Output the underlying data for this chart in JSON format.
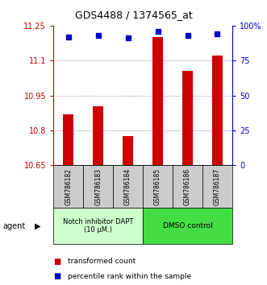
{
  "title": "GDS4488 / 1374565_at",
  "categories": [
    "GSM786182",
    "GSM786183",
    "GSM786184",
    "GSM786185",
    "GSM786186",
    "GSM786187"
  ],
  "bar_values": [
    10.87,
    10.905,
    10.775,
    11.2,
    11.055,
    11.12
  ],
  "blue_values": [
    92,
    93,
    91,
    96,
    93,
    94
  ],
  "ylim_left": [
    10.65,
    11.25
  ],
  "ylim_right": [
    0,
    100
  ],
  "yticks_left": [
    10.65,
    10.8,
    10.95,
    11.1,
    11.25
  ],
  "ytick_labels_left": [
    "10.65",
    "10.8",
    "10.95",
    "11.1",
    "11.25"
  ],
  "yticks_right": [
    0,
    25,
    50,
    75,
    100
  ],
  "ytick_labels_right": [
    "0",
    "25",
    "50",
    "75",
    "100%"
  ],
  "bar_color": "#cc0000",
  "blue_color": "#0000cc",
  "group1_label": "Notch inhibitor DAPT\n(10 μM.)",
  "group2_label": "DMSO control",
  "group1_color": "#ccffcc",
  "group2_color": "#44dd44",
  "legend_transformed": "transformed count",
  "legend_percentile": "percentile rank within the sample",
  "agent_label": "agent",
  "grid_color": "#888888",
  "bg_plot": "#ffffff",
  "tick_box_color": "#cccccc"
}
